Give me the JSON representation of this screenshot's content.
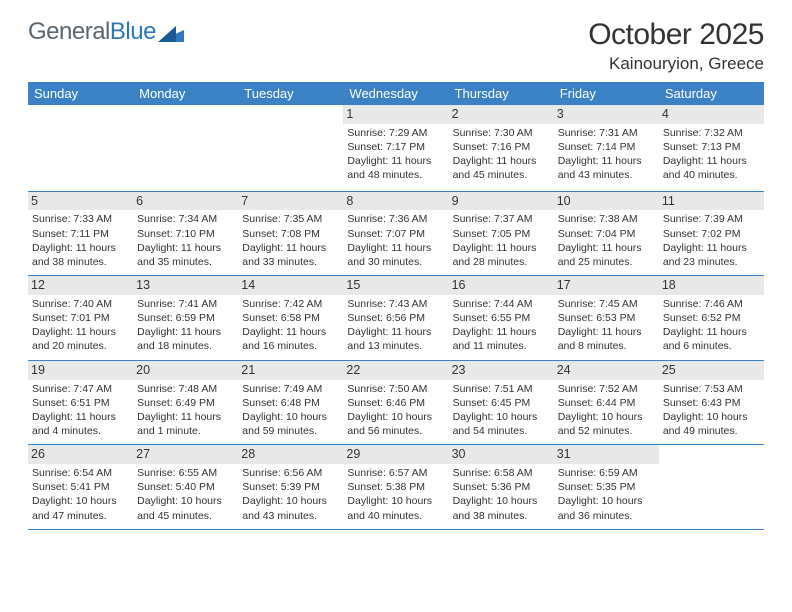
{
  "logo": {
    "name1": "General",
    "name2": "Blue"
  },
  "title": "October 2025",
  "location": "Kainouryion, Greece",
  "styling": {
    "header_bg": "#3a82c4",
    "header_text_color": "#ffffff",
    "daynum_bg": "#e8e8e8",
    "border_color": "#3a82c4",
    "body_text_color": "#333333",
    "page_bg": "#ffffff",
    "header_fontsize": 13,
    "day_fontsize": 10.5,
    "daynum_fontsize": 12.5,
    "title_fontsize": 30,
    "location_fontsize": 17,
    "logo_color_1": "#5a6670",
    "logo_color_2": "#2d79bd"
  },
  "dayHeaders": [
    "Sunday",
    "Monday",
    "Tuesday",
    "Wednesday",
    "Thursday",
    "Friday",
    "Saturday"
  ],
  "weeks": [
    [
      {
        "n": "",
        "sr": "",
        "ss": "",
        "dl": ""
      },
      {
        "n": "",
        "sr": "",
        "ss": "",
        "dl": ""
      },
      {
        "n": "",
        "sr": "",
        "ss": "",
        "dl": ""
      },
      {
        "n": "1",
        "sr": "Sunrise: 7:29 AM",
        "ss": "Sunset: 7:17 PM",
        "dl": "Daylight: 11 hours and 48 minutes."
      },
      {
        "n": "2",
        "sr": "Sunrise: 7:30 AM",
        "ss": "Sunset: 7:16 PM",
        "dl": "Daylight: 11 hours and 45 minutes."
      },
      {
        "n": "3",
        "sr": "Sunrise: 7:31 AM",
        "ss": "Sunset: 7:14 PM",
        "dl": "Daylight: 11 hours and 43 minutes."
      },
      {
        "n": "4",
        "sr": "Sunrise: 7:32 AM",
        "ss": "Sunset: 7:13 PM",
        "dl": "Daylight: 11 hours and 40 minutes."
      }
    ],
    [
      {
        "n": "5",
        "sr": "Sunrise: 7:33 AM",
        "ss": "Sunset: 7:11 PM",
        "dl": "Daylight: 11 hours and 38 minutes."
      },
      {
        "n": "6",
        "sr": "Sunrise: 7:34 AM",
        "ss": "Sunset: 7:10 PM",
        "dl": "Daylight: 11 hours and 35 minutes."
      },
      {
        "n": "7",
        "sr": "Sunrise: 7:35 AM",
        "ss": "Sunset: 7:08 PM",
        "dl": "Daylight: 11 hours and 33 minutes."
      },
      {
        "n": "8",
        "sr": "Sunrise: 7:36 AM",
        "ss": "Sunset: 7:07 PM",
        "dl": "Daylight: 11 hours and 30 minutes."
      },
      {
        "n": "9",
        "sr": "Sunrise: 7:37 AM",
        "ss": "Sunset: 7:05 PM",
        "dl": "Daylight: 11 hours and 28 minutes."
      },
      {
        "n": "10",
        "sr": "Sunrise: 7:38 AM",
        "ss": "Sunset: 7:04 PM",
        "dl": "Daylight: 11 hours and 25 minutes."
      },
      {
        "n": "11",
        "sr": "Sunrise: 7:39 AM",
        "ss": "Sunset: 7:02 PM",
        "dl": "Daylight: 11 hours and 23 minutes."
      }
    ],
    [
      {
        "n": "12",
        "sr": "Sunrise: 7:40 AM",
        "ss": "Sunset: 7:01 PM",
        "dl": "Daylight: 11 hours and 20 minutes."
      },
      {
        "n": "13",
        "sr": "Sunrise: 7:41 AM",
        "ss": "Sunset: 6:59 PM",
        "dl": "Daylight: 11 hours and 18 minutes."
      },
      {
        "n": "14",
        "sr": "Sunrise: 7:42 AM",
        "ss": "Sunset: 6:58 PM",
        "dl": "Daylight: 11 hours and 16 minutes."
      },
      {
        "n": "15",
        "sr": "Sunrise: 7:43 AM",
        "ss": "Sunset: 6:56 PM",
        "dl": "Daylight: 11 hours and 13 minutes."
      },
      {
        "n": "16",
        "sr": "Sunrise: 7:44 AM",
        "ss": "Sunset: 6:55 PM",
        "dl": "Daylight: 11 hours and 11 minutes."
      },
      {
        "n": "17",
        "sr": "Sunrise: 7:45 AM",
        "ss": "Sunset: 6:53 PM",
        "dl": "Daylight: 11 hours and 8 minutes."
      },
      {
        "n": "18",
        "sr": "Sunrise: 7:46 AM",
        "ss": "Sunset: 6:52 PM",
        "dl": "Daylight: 11 hours and 6 minutes."
      }
    ],
    [
      {
        "n": "19",
        "sr": "Sunrise: 7:47 AM",
        "ss": "Sunset: 6:51 PM",
        "dl": "Daylight: 11 hours and 4 minutes."
      },
      {
        "n": "20",
        "sr": "Sunrise: 7:48 AM",
        "ss": "Sunset: 6:49 PM",
        "dl": "Daylight: 11 hours and 1 minute."
      },
      {
        "n": "21",
        "sr": "Sunrise: 7:49 AM",
        "ss": "Sunset: 6:48 PM",
        "dl": "Daylight: 10 hours and 59 minutes."
      },
      {
        "n": "22",
        "sr": "Sunrise: 7:50 AM",
        "ss": "Sunset: 6:46 PM",
        "dl": "Daylight: 10 hours and 56 minutes."
      },
      {
        "n": "23",
        "sr": "Sunrise: 7:51 AM",
        "ss": "Sunset: 6:45 PM",
        "dl": "Daylight: 10 hours and 54 minutes."
      },
      {
        "n": "24",
        "sr": "Sunrise: 7:52 AM",
        "ss": "Sunset: 6:44 PM",
        "dl": "Daylight: 10 hours and 52 minutes."
      },
      {
        "n": "25",
        "sr": "Sunrise: 7:53 AM",
        "ss": "Sunset: 6:43 PM",
        "dl": "Daylight: 10 hours and 49 minutes."
      }
    ],
    [
      {
        "n": "26",
        "sr": "Sunrise: 6:54 AM",
        "ss": "Sunset: 5:41 PM",
        "dl": "Daylight: 10 hours and 47 minutes."
      },
      {
        "n": "27",
        "sr": "Sunrise: 6:55 AM",
        "ss": "Sunset: 5:40 PM",
        "dl": "Daylight: 10 hours and 45 minutes."
      },
      {
        "n": "28",
        "sr": "Sunrise: 6:56 AM",
        "ss": "Sunset: 5:39 PM",
        "dl": "Daylight: 10 hours and 43 minutes."
      },
      {
        "n": "29",
        "sr": "Sunrise: 6:57 AM",
        "ss": "Sunset: 5:38 PM",
        "dl": "Daylight: 10 hours and 40 minutes."
      },
      {
        "n": "30",
        "sr": "Sunrise: 6:58 AM",
        "ss": "Sunset: 5:36 PM",
        "dl": "Daylight: 10 hours and 38 minutes."
      },
      {
        "n": "31",
        "sr": "Sunrise: 6:59 AM",
        "ss": "Sunset: 5:35 PM",
        "dl": "Daylight: 10 hours and 36 minutes."
      },
      {
        "n": "",
        "sr": "",
        "ss": "",
        "dl": ""
      }
    ]
  ]
}
